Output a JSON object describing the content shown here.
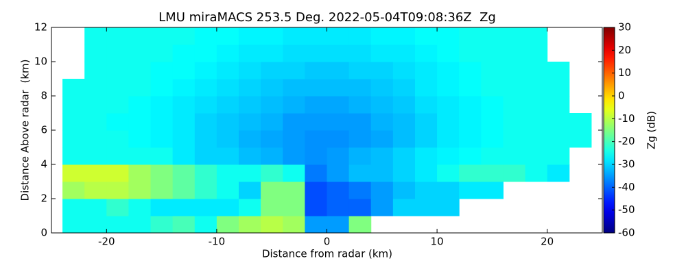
{
  "chart_data": {
    "type": "heatmap",
    "title": "LMU miraMACS 253.5 Deg. 2022-05-04T09:08:36Z  Zg",
    "x_label": "Distance from radar (km)",
    "y_label": "Distance Above radar  (km)",
    "colorbar_label": "Zg (dB)",
    "colormap": "jet",
    "xlim": [
      -25,
      25
    ],
    "xticks": [
      -20,
      -10,
      0,
      10,
      20
    ],
    "ylim": [
      0,
      12
    ],
    "yticks": [
      0,
      2,
      4,
      6,
      8,
      10,
      12
    ],
    "zlim": [
      -60,
      30
    ],
    "zticks": [
      -60,
      -50,
      -40,
      -30,
      -20,
      -10,
      0,
      10,
      20,
      30
    ],
    "x_edges": [
      -24,
      -22,
      -20,
      -18,
      -16,
      -14,
      -12,
      -10,
      -8,
      -6,
      -4,
      -2,
      0,
      2,
      4,
      6,
      8,
      10,
      12,
      14,
      16,
      18,
      20,
      22,
      24
    ],
    "y_edges": [
      0,
      1,
      2,
      3,
      4,
      5,
      6,
      7,
      8,
      9,
      10,
      11,
      12
    ],
    "z": [
      [
        -25,
        -25,
        -25,
        -25,
        -22,
        -20,
        -25,
        -15,
        -12,
        -10,
        -12,
        -35,
        -35,
        -15,
        null,
        null,
        null,
        null,
        null,
        null,
        null,
        null,
        null,
        null
      ],
      [
        -25,
        -25,
        -22,
        -25,
        -28,
        -28,
        -28,
        -28,
        -25,
        -15,
        -15,
        -42,
        -40,
        -40,
        -35,
        -30,
        -30,
        -30,
        null,
        null,
        null,
        null,
        null,
        null
      ],
      [
        -12,
        -10,
        -10,
        -12,
        -15,
        -18,
        -22,
        -25,
        -30,
        -15,
        -15,
        -42,
        -40,
        -38,
        -35,
        -32,
        -30,
        -30,
        -28,
        -28,
        null,
        null,
        null,
        null
      ],
      [
        -8,
        -8,
        -8,
        -12,
        -15,
        -18,
        -22,
        -25,
        -25,
        -22,
        -25,
        -38,
        -35,
        -32,
        -32,
        -30,
        -28,
        -25,
        -22,
        -22,
        -22,
        -25,
        -28,
        null
      ],
      [
        -25,
        -25,
        -25,
        -25,
        -25,
        -28,
        -30,
        -30,
        -32,
        -33,
        -35,
        -36,
        -35,
        -33,
        -32,
        -30,
        -28,
        -27,
        -26,
        -25,
        -25,
        -25,
        -25,
        null
      ],
      [
        -25,
        -25,
        -25,
        -26,
        -27,
        -28,
        -30,
        -31,
        -33,
        -34,
        -35,
        -36,
        -36,
        -35,
        -34,
        -32,
        -30,
        -28,
        -27,
        -26,
        -25,
        -25,
        -25,
        -25
      ],
      [
        -25,
        -25,
        -26,
        -26,
        -27,
        -28,
        -30,
        -31,
        -32,
        -33,
        -35,
        -35,
        -35,
        -35,
        -33,
        -32,
        -30,
        -28,
        -27,
        -26,
        -25,
        -25,
        -25,
        -25
      ],
      [
        -25,
        -25,
        -25,
        -26,
        -27,
        -28,
        -29,
        -30,
        -31,
        -32,
        -33,
        -34,
        -34,
        -33,
        -32,
        -31,
        -29,
        -28,
        -27,
        -26,
        -25,
        -25,
        -25,
        null
      ],
      [
        -25,
        -25,
        -25,
        -25,
        -26,
        -27,
        -28,
        -29,
        -30,
        -31,
        -32,
        -32,
        -32,
        -32,
        -31,
        -30,
        -28,
        -27,
        -26,
        -25,
        -25,
        -25,
        -25,
        null
      ],
      [
        null,
        -25,
        -25,
        -25,
        -26,
        -26,
        -27,
        -28,
        -29,
        -30,
        -30,
        -31,
        -31,
        -30,
        -30,
        -29,
        -28,
        -27,
        -26,
        -25,
        -25,
        -25,
        -25,
        null
      ],
      [
        null,
        -25,
        -25,
        -25,
        -25,
        -26,
        -26,
        -27,
        -28,
        -28,
        -29,
        -29,
        -29,
        -29,
        -28,
        -28,
        -27,
        -26,
        -25,
        -25,
        -25,
        -25,
        null,
        null
      ],
      [
        null,
        -25,
        -25,
        -25,
        -25,
        -25,
        -26,
        -26,
        -27,
        -27,
        -28,
        -28,
        -28,
        -28,
        -27,
        -27,
        -26,
        -26,
        -25,
        -25,
        -25,
        -25,
        null,
        null
      ]
    ]
  }
}
